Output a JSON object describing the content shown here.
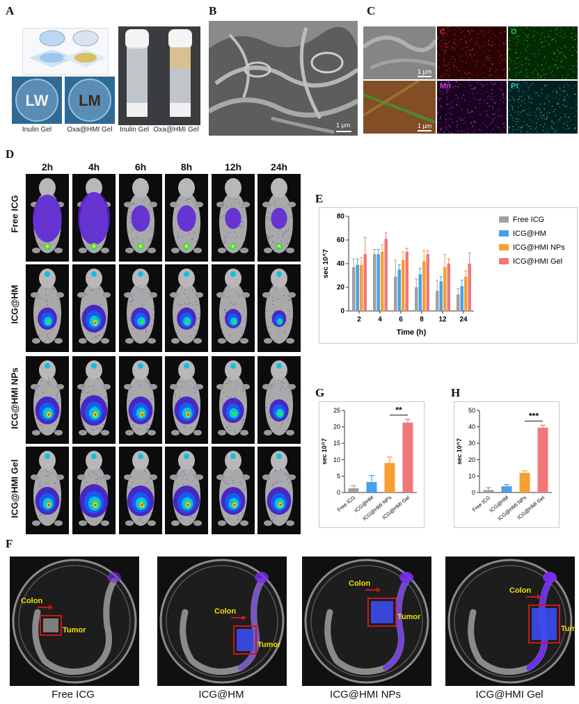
{
  "panel_labels": [
    "A",
    "B",
    "C",
    "D",
    "E",
    "F",
    "G",
    "H"
  ],
  "panel_a": {
    "captions": [
      "Inulin Gel",
      "Oxa@HMI Gel",
      "Inulin Gel",
      "Oxa@HMI Gel"
    ],
    "dish_text": [
      "LW",
      "LM"
    ]
  },
  "panel_b": {
    "scale": "1 μm"
  },
  "panel_c": {
    "scale_1": "1 μm",
    "scale_2": "1 μm",
    "maps": [
      {
        "label": "C",
        "color": "#e03030"
      },
      {
        "label": "O",
        "color": "#30c030"
      },
      {
        "label": "Mn",
        "color": "#c040e0"
      },
      {
        "label": "Pt",
        "color": "#30c0c0"
      }
    ]
  },
  "panel_d": {
    "times": [
      "2h",
      "4h",
      "6h",
      "8h",
      "12h",
      "24h"
    ],
    "groups": [
      "Free ICG",
      "ICG@HM",
      "ICG@HMI NPs",
      "ICG@HMI Gel"
    ]
  },
  "panel_f": {
    "colon_label": "Colon",
    "tumor_label": "Tumor",
    "dishes": [
      "Free ICG",
      "ICG@HM",
      "ICG@HMI NPs",
      "ICG@HMI Gel"
    ]
  },
  "colors": {
    "free": "#a0a0a0",
    "hm": "#4aa0e8",
    "nps": "#f5a030",
    "gel": "#f07878"
  },
  "chart_data": [
    {
      "id": "E",
      "type": "bar",
      "xlabel": "Time (h)",
      "ylabel": "sec 10^7",
      "ylim": [
        0,
        80
      ],
      "yticks": [
        0,
        20,
        40,
        60,
        80
      ],
      "categories": [
        "2",
        "4",
        "6",
        "8",
        "12",
        "24"
      ],
      "series": [
        {
          "name": "Free ICG",
          "values": [
            37,
            48,
            29,
            20,
            17,
            14
          ],
          "errors": [
            7,
            4,
            14,
            7,
            9,
            5
          ]
        },
        {
          "name": "ICG@HM",
          "values": [
            39,
            48,
            35,
            31,
            25,
            21
          ],
          "errors": [
            5,
            4,
            4,
            5,
            4,
            5
          ]
        },
        {
          "name": "ICG@HMI NPs",
          "values": [
            39,
            50,
            43,
            42,
            37,
            29
          ],
          "errors": [
            6,
            6,
            7,
            9,
            11,
            5
          ]
        },
        {
          "name": "ICG@HMI Gel",
          "values": [
            48,
            61,
            50,
            48,
            40,
            40
          ],
          "errors": [
            14,
            5,
            3,
            3,
            4,
            9
          ]
        }
      ],
      "legend": "top-right"
    },
    {
      "id": "G",
      "type": "bar",
      "ylabel": "sec 10^7",
      "ylim": [
        0,
        25
      ],
      "yticks": [
        0,
        5,
        10,
        15,
        20,
        25
      ],
      "categories": [
        "Free ICG",
        "ICG@HM",
        "ICG@HMI NPs",
        "ICG@HMI Gel"
      ],
      "values": [
        1.3,
        3.2,
        9.0,
        21.3
      ],
      "errors": [
        0.8,
        2.0,
        1.8,
        1.0
      ],
      "significance": "**"
    },
    {
      "id": "H",
      "type": "bar",
      "ylabel": "sec 10^7",
      "ylim": [
        0,
        50
      ],
      "yticks": [
        0,
        10,
        20,
        30,
        40,
        50
      ],
      "categories": [
        "Free ICG",
        "ICG@HM",
        "ICG@HMI NPs",
        "ICG@HMI Gel"
      ],
      "values": [
        1.5,
        3.8,
        12.0,
        39.5
      ],
      "errors": [
        1.5,
        1.0,
        1.2,
        1.5
      ],
      "significance": "***"
    }
  ]
}
